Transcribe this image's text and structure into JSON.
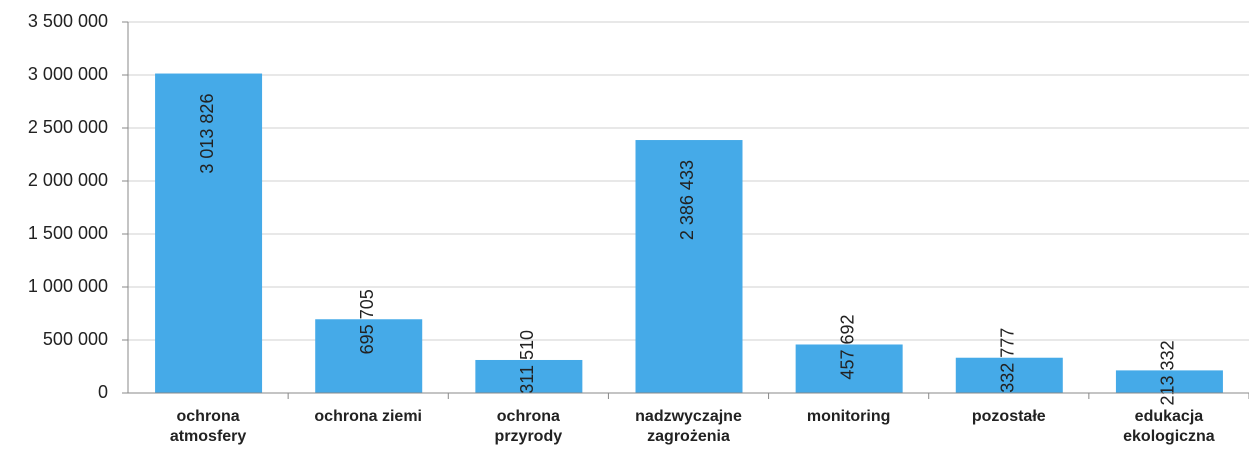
{
  "chart_data": {
    "type": "bar",
    "categories": [
      "ochrona\natmosfery",
      "ochrona ziemi",
      "ochrona\nprzyrody",
      "nadzwyczajne\nzagrożenia",
      "monitoring",
      "pozostałe",
      "edukacja\nekologiczna"
    ],
    "values": [
      3013826,
      695705,
      311510,
      2386433,
      457692,
      332777,
      213332
    ],
    "value_labels": [
      "3 013 826",
      "695 705",
      "311 510",
      "2 386 433",
      "457 692",
      "332 777",
      "213 332"
    ],
    "color": "#45aae8",
    "ylim": [
      0,
      3500000
    ],
    "yticks": [
      {
        "value": 0,
        "label": "0"
      },
      {
        "value": 500000,
        "label": "500 000"
      },
      {
        "value": 1000000,
        "label": "1 000 000"
      },
      {
        "value": 1500000,
        "label": "1 500 000"
      },
      {
        "value": 2000000,
        "label": "2 000 000"
      },
      {
        "value": 2500000,
        "label": "2 500 000"
      },
      {
        "value": 3000000,
        "label": "3 000 000"
      },
      {
        "value": 3500000,
        "label": "3 500 000"
      }
    ],
    "grid": true
  }
}
